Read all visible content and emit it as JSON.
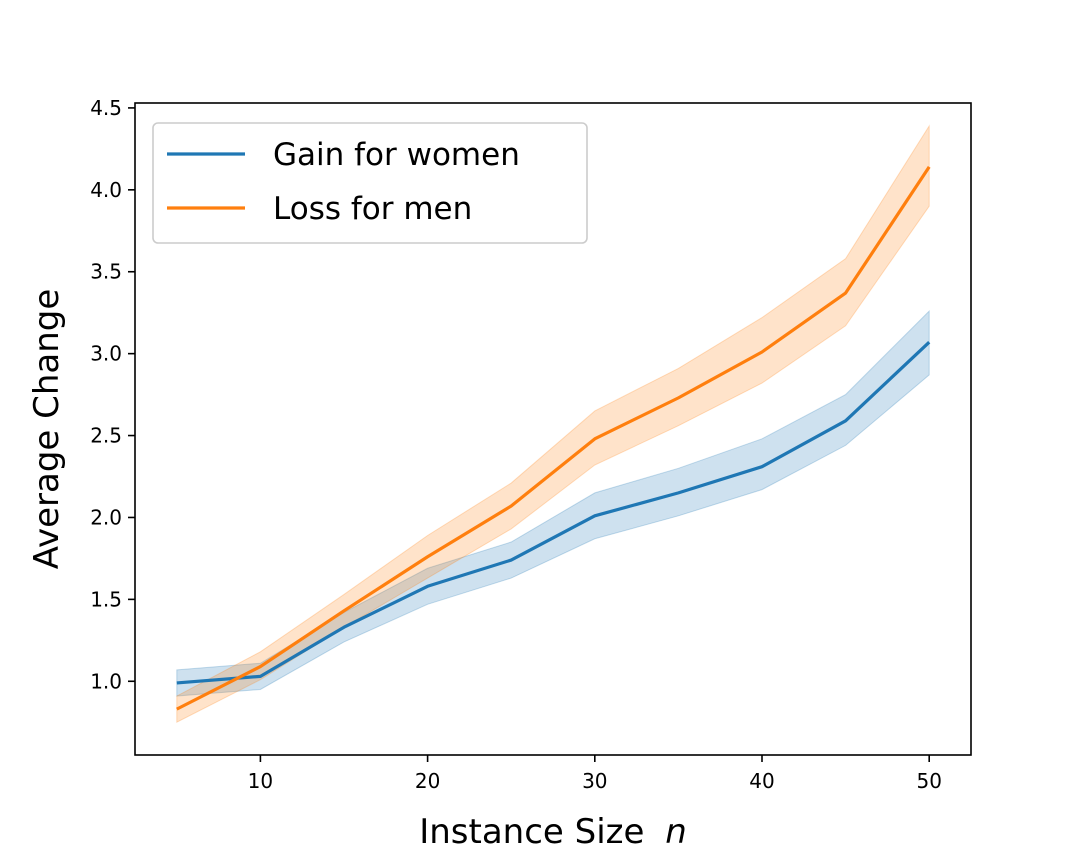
{
  "chart_data": {
    "type": "line",
    "title": "",
    "xlabel": "Instance Size",
    "xlabel_var": "n",
    "ylabel": "Average Change",
    "xlim": [
      2.5,
      52.5
    ],
    "ylim": [
      0.55,
      4.53
    ],
    "xticks": [
      10,
      20,
      30,
      40,
      50
    ],
    "yticks": [
      1.0,
      1.5,
      2.0,
      2.5,
      3.0,
      3.5,
      4.0,
      4.5
    ],
    "x": [
      5,
      10,
      15,
      20,
      25,
      30,
      35,
      40,
      45,
      50
    ],
    "grid": false,
    "legend_position": "upper-left",
    "series": [
      {
        "name": "Gain for women",
        "color": "#1f77b4",
        "values": [
          0.99,
          1.03,
          1.33,
          1.58,
          1.74,
          2.01,
          2.15,
          2.31,
          2.59,
          3.07
        ],
        "lower": [
          0.91,
          0.95,
          1.24,
          1.47,
          1.63,
          1.87,
          2.01,
          2.17,
          2.44,
          2.87
        ],
        "upper": [
          1.07,
          1.11,
          1.42,
          1.69,
          1.85,
          2.15,
          2.3,
          2.48,
          2.75,
          3.26
        ]
      },
      {
        "name": "Loss for men",
        "color": "#ff7f0e",
        "values": [
          0.83,
          1.09,
          1.43,
          1.76,
          2.07,
          2.48,
          2.73,
          3.01,
          3.37,
          4.14
        ],
        "lower": [
          0.75,
          1.01,
          1.33,
          1.63,
          1.93,
          2.32,
          2.56,
          2.82,
          3.17,
          3.9
        ],
        "upper": [
          0.91,
          1.18,
          1.53,
          1.89,
          2.21,
          2.65,
          2.91,
          3.22,
          3.58,
          4.39
        ]
      }
    ]
  }
}
